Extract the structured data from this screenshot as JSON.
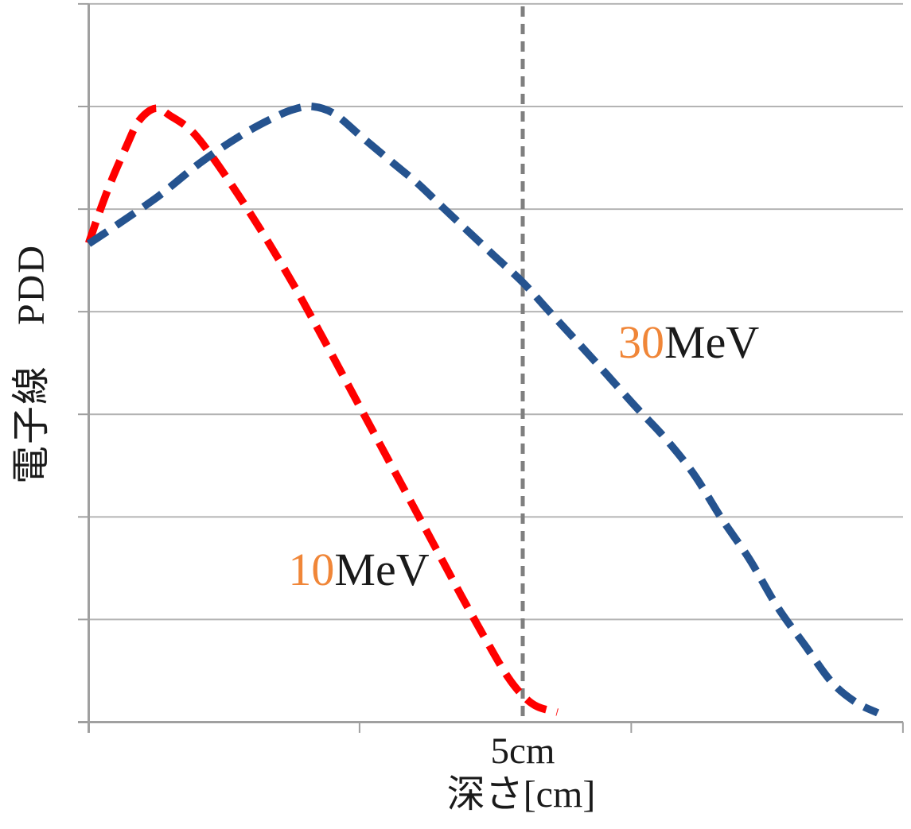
{
  "chart_data": {
    "type": "line",
    "title": "",
    "xlabel": "深さ[cm]",
    "ylabel": "電子線　PDD",
    "x_unit": "cm",
    "y_unit": "PDD (percent, unlabeled axis)",
    "xlim": [
      0,
      9.38
    ],
    "ylim": [
      0,
      116.7
    ],
    "grid": "horizontal",
    "y_gridlines_pdd": [
      16.67,
      33.33,
      50,
      66.67,
      83.33,
      100,
      116.67
    ],
    "x_ticks_cm": [
      0,
      3.12,
      6.25,
      9.38
    ],
    "x_tick_labels": [
      "",
      "",
      "",
      ""
    ],
    "legend_position": "inline-curve-labels",
    "reference_line": {
      "x_cm": 5.0,
      "label": "5cm",
      "color": "#7F7F7F",
      "style": "dashed",
      "label_pos": {
        "x_cm": 5.0,
        "y_pdd": -1.7
      }
    },
    "series": [
      {
        "name": "10MeV",
        "label": {
          "value": "10",
          "unit": "MeV"
        },
        "color": "#FF0000",
        "style": "dashed",
        "label_pos": {
          "x_cm": 2.3,
          "y_pdd": 28.5
        },
        "points": [
          [
            0.0,
            77.8
          ],
          [
            0.12,
            82.7
          ],
          [
            0.26,
            87.9
          ],
          [
            0.43,
            93.4
          ],
          [
            0.58,
            97.7
          ],
          [
            0.77,
            99.7
          ],
          [
            0.95,
            98.4
          ],
          [
            1.18,
            96.1
          ],
          [
            1.41,
            92.1
          ],
          [
            1.73,
            85.5
          ],
          [
            2.05,
            78.4
          ],
          [
            2.37,
            70.8
          ],
          [
            2.69,
            62.6
          ],
          [
            3.01,
            54.2
          ],
          [
            3.33,
            45.8
          ],
          [
            3.65,
            37.4
          ],
          [
            3.97,
            29.0
          ],
          [
            4.29,
            20.6
          ],
          [
            4.59,
            13.0
          ],
          [
            4.83,
            7.3
          ],
          [
            5.01,
            4.2
          ],
          [
            5.17,
            2.5
          ],
          [
            5.4,
            1.6
          ]
        ]
      },
      {
        "name": "30MeV",
        "label": {
          "value": "30",
          "unit": "MeV"
        },
        "color": "#25538F",
        "style": "dashed",
        "label_pos": {
          "x_cm": 6.1,
          "y_pdd": 65.4
        },
        "points": [
          [
            0.0,
            77.7
          ],
          [
            0.35,
            81.0
          ],
          [
            0.81,
            85.5
          ],
          [
            1.27,
            90.7
          ],
          [
            1.73,
            95.1
          ],
          [
            2.09,
            97.9
          ],
          [
            2.35,
            99.5
          ],
          [
            2.58,
            100.0
          ],
          [
            2.83,
            98.8
          ],
          [
            3.15,
            95.0
          ],
          [
            3.49,
            91.0
          ],
          [
            3.79,
            87.5
          ],
          [
            4.08,
            83.6
          ],
          [
            4.38,
            79.6
          ],
          [
            4.66,
            75.9
          ],
          [
            5.01,
            71.3
          ],
          [
            5.3,
            66.8
          ],
          [
            5.62,
            61.9
          ],
          [
            5.96,
            56.6
          ],
          [
            6.31,
            51.1
          ],
          [
            6.63,
            46.3
          ],
          [
            6.97,
            40.3
          ],
          [
            7.29,
            33.1
          ],
          [
            7.61,
            26.5
          ],
          [
            7.93,
            18.8
          ],
          [
            8.25,
            12.5
          ],
          [
            8.56,
            6.5
          ],
          [
            8.84,
            3.2
          ],
          [
            9.09,
            1.5
          ]
        ]
      }
    ],
    "colors": {
      "grid": "#B4B4B4",
      "axis": "#A0A0A0",
      "series_label_number": "#F08638",
      "text": "#1A1A1A"
    }
  }
}
